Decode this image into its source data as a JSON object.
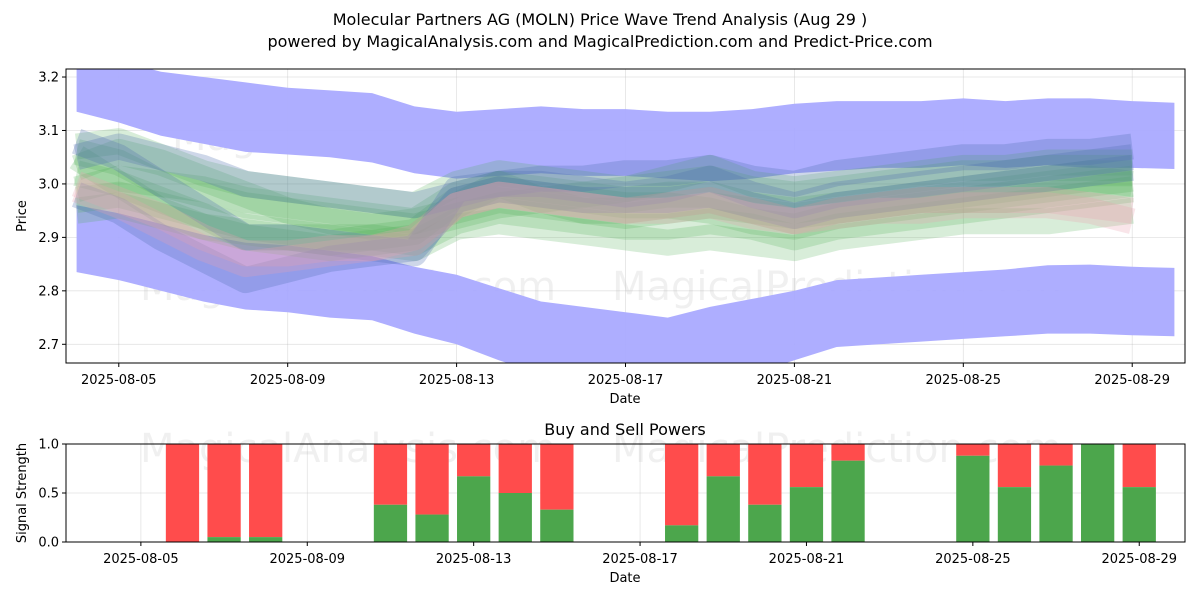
{
  "header": {
    "title": "Molecular Partners AG (MOLN) Price Wave Trend Analysis (Aug 29 )",
    "subtitle": "powered by MagicalAnalysis.com and MagicalPrediction.com and Predict-Price.com"
  },
  "watermarks": [
    "MagicalAnalysis.com",
    "MagicalPrediction.com"
  ],
  "colors": {
    "band_blue": "#aaaaff",
    "wave_green": "#4caf50",
    "wave_blue": "#4f6fb0",
    "wave_pink": "#e8a0b0",
    "buy": "#4ca64c",
    "sell": "#ff4c4c"
  },
  "chart_data": [
    {
      "type": "area",
      "title": "",
      "xlabel": "Date",
      "ylabel": "Price",
      "x_ticks": [
        "2025-08-05",
        "2025-08-09",
        "2025-08-13",
        "2025-08-17",
        "2025-08-21",
        "2025-08-25",
        "2025-08-29"
      ],
      "y_ticks": [
        "2.7",
        "2.8",
        "2.9",
        "3.0",
        "3.1",
        "3.2"
      ],
      "xlim": [
        "2025-08-03 18:00",
        "2025-08-30 06:00"
      ],
      "ylim": [
        2.665,
        3.215
      ],
      "grid": true,
      "bands": [
        {
          "name": "upper",
          "x": [
            "2025-08-04",
            "2025-08-05",
            "2025-08-06",
            "2025-08-07",
            "2025-08-08",
            "2025-08-09",
            "2025-08-10",
            "2025-08-11",
            "2025-08-12",
            "2025-08-13",
            "2025-08-14",
            "2025-08-15",
            "2025-08-16",
            "2025-08-17",
            "2025-08-18",
            "2025-08-19",
            "2025-08-20",
            "2025-08-21",
            "2025-08-22",
            "2025-08-23",
            "2025-08-24",
            "2025-08-25",
            "2025-08-26",
            "2025-08-27",
            "2025-08-28",
            "2025-08-29",
            "2025-08-30"
          ],
          "upper": [
            3.25,
            3.23,
            3.21,
            3.2,
            3.19,
            3.18,
            3.175,
            3.17,
            3.145,
            3.135,
            3.14,
            3.145,
            3.14,
            3.14,
            3.135,
            3.135,
            3.14,
            3.15,
            3.155,
            3.155,
            3.155,
            3.16,
            3.155,
            3.16,
            3.16,
            3.155,
            3.152
          ],
          "lower": [
            3.135,
            3.115,
            3.09,
            3.075,
            3.06,
            3.055,
            3.05,
            3.04,
            3.02,
            3.01,
            3.015,
            3.02,
            3.015,
            3.015,
            3.01,
            3.005,
            3.01,
            3.02,
            3.025,
            3.03,
            3.03,
            3.035,
            3.03,
            3.035,
            3.03,
            3.03,
            3.028
          ]
        },
        {
          "name": "lower",
          "x": [
            "2025-08-04",
            "2025-08-05",
            "2025-08-06",
            "2025-08-07",
            "2025-08-08",
            "2025-08-09",
            "2025-08-10",
            "2025-08-11",
            "2025-08-12",
            "2025-08-13",
            "2025-08-14",
            "2025-08-15",
            "2025-08-16",
            "2025-08-17",
            "2025-08-18",
            "2025-08-19",
            "2025-08-20",
            "2025-08-21",
            "2025-08-22",
            "2025-08-23",
            "2025-08-24",
            "2025-08-25",
            "2025-08-26",
            "2025-08-27",
            "2025-08-28",
            "2025-08-29",
            "2025-08-30"
          ],
          "upper": [
            2.96,
            2.945,
            2.925,
            2.905,
            2.89,
            2.885,
            2.875,
            2.865,
            2.845,
            2.83,
            2.805,
            2.78,
            2.77,
            2.76,
            2.75,
            2.77,
            2.785,
            2.8,
            2.82,
            2.825,
            2.83,
            2.835,
            2.84,
            2.848,
            2.849,
            2.845,
            2.843
          ],
          "lower": [
            2.835,
            2.82,
            2.8,
            2.78,
            2.765,
            2.76,
            2.75,
            2.745,
            2.72,
            2.7,
            2.67,
            2.645,
            2.635,
            2.62,
            2.61,
            2.625,
            2.645,
            2.67,
            2.695,
            2.7,
            2.705,
            2.71,
            2.715,
            2.72,
            2.72,
            2.717,
            2.715
          ]
        }
      ],
      "wave_x": [
        "2025-08-04",
        "2025-08-05",
        "2025-08-06",
        "2025-08-07",
        "2025-08-08",
        "2025-08-09",
        "2025-08-10",
        "2025-08-11",
        "2025-08-12",
        "2025-08-13",
        "2025-08-14",
        "2025-08-15",
        "2025-08-16",
        "2025-08-17",
        "2025-08-18",
        "2025-08-19",
        "2025-08-20",
        "2025-08-21",
        "2025-08-22",
        "2025-08-23",
        "2025-08-24",
        "2025-08-25",
        "2025-08-26",
        "2025-08-27",
        "2025-08-28",
        "2025-08-29"
      ],
      "waves": [
        {
          "color": "green",
          "values": [
            3.06,
            3.04,
            3.0,
            2.99,
            2.97,
            2.96,
            2.95,
            2.94,
            2.93,
            2.98,
            3.0,
            2.99,
            2.98,
            2.97,
            2.98,
            2.98,
            2.96,
            2.95,
            2.96,
            2.97,
            2.98,
            2.99,
            3.0,
            3.01,
            3.02,
            3.02
          ]
        },
        {
          "color": "green",
          "values": [
            3.05,
            3.0,
            2.95,
            2.92,
            2.9,
            2.9,
            2.89,
            2.9,
            2.91,
            2.97,
            2.99,
            2.98,
            2.97,
            2.96,
            2.96,
            2.95,
            2.93,
            2.92,
            2.94,
            2.95,
            2.96,
            2.97,
            2.97,
            2.98,
            2.99,
            3.0
          ]
        },
        {
          "color": "green",
          "values": [
            3.03,
            3.06,
            3.04,
            3.01,
            2.98,
            2.95,
            2.93,
            2.92,
            2.93,
            2.95,
            2.97,
            2.96,
            2.95,
            2.94,
            2.95,
            2.96,
            2.95,
            2.93,
            2.95,
            2.96,
            2.97,
            2.98,
            2.99,
            3.0,
            3.01,
            3.0
          ]
        },
        {
          "color": "green",
          "values": [
            3.07,
            3.08,
            3.05,
            3.02,
            3.0,
            2.99,
            2.98,
            2.97,
            2.96,
            3.0,
            3.02,
            3.01,
            3.0,
            2.99,
            3.0,
            3.01,
            2.99,
            2.98,
            2.99,
            3.0,
            3.01,
            3.02,
            3.02,
            3.03,
            3.03,
            3.03
          ]
        },
        {
          "color": "green",
          "values": [
            2.97,
            2.98,
            2.96,
            2.94,
            2.92,
            2.91,
            2.9,
            2.9,
            2.89,
            2.93,
            2.95,
            2.94,
            2.93,
            2.92,
            2.92,
            2.93,
            2.92,
            2.9,
            2.92,
            2.93,
            2.94,
            2.95,
            2.96,
            2.97,
            2.98,
            2.99
          ]
        },
        {
          "color": "green",
          "values": [
            3.02,
            3.0,
            2.97,
            2.94,
            2.9,
            2.89,
            2.88,
            2.89,
            2.9,
            2.96,
            3.0,
            2.97,
            2.95,
            2.95,
            2.96,
            2.97,
            2.95,
            2.94,
            2.95,
            2.96,
            2.97,
            2.97,
            2.98,
            2.99,
            3.0,
            3.01
          ]
        },
        {
          "color": "green",
          "values": [
            2.99,
            3.01,
            3.0,
            2.98,
            2.96,
            2.95,
            2.94,
            2.93,
            2.92,
            2.94,
            2.96,
            2.97,
            2.98,
            2.99,
            3.01,
            3.03,
            3.0,
            2.99,
            3.0,
            3.01,
            3.02,
            3.03,
            3.03,
            3.04,
            3.04,
            3.04
          ]
        },
        {
          "color": "green",
          "values": [
            2.95,
            2.96,
            2.94,
            2.92,
            2.91,
            2.9,
            2.9,
            2.89,
            2.88,
            2.92,
            2.93,
            2.92,
            2.91,
            2.9,
            2.89,
            2.9,
            2.89,
            2.88,
            2.9,
            2.91,
            2.92,
            2.93,
            2.93,
            2.93,
            2.94,
            2.95
          ]
        },
        {
          "color": "blue",
          "values": [
            3.08,
            3.05,
            3.0,
            2.95,
            2.9,
            2.9,
            2.89,
            2.88,
            2.87,
            2.99,
            3.0,
            3.0,
            2.99,
            2.98,
            2.99,
            3.01,
            2.98,
            2.96,
            2.98,
            2.99,
            3.0,
            3.01,
            3.02,
            3.03,
            3.04,
            3.05
          ]
        },
        {
          "color": "blue",
          "values": [
            3.05,
            3.07,
            3.05,
            3.03,
            3.0,
            2.99,
            2.98,
            2.97,
            2.96,
            2.98,
            3.0,
            3.01,
            3.01,
            3.02,
            3.02,
            3.03,
            3.01,
            3.0,
            3.02,
            3.03,
            3.04,
            3.05,
            3.05,
            3.06,
            3.06,
            3.07
          ]
        },
        {
          "color": "blue",
          "values": [
            2.98,
            2.95,
            2.9,
            2.86,
            2.82,
            2.84,
            2.86,
            2.87,
            2.88,
            2.97,
            2.99,
            2.98,
            2.97,
            2.97,
            2.97,
            2.98,
            2.96,
            2.94,
            2.96,
            2.97,
            2.98,
            2.99,
            3.0,
            3.01,
            3.02,
            3.03
          ]
        },
        {
          "color": "pink",
          "values": [
            2.99,
            2.96,
            2.92,
            2.88,
            2.85,
            2.86,
            2.87,
            2.88,
            2.89,
            2.96,
            2.98,
            2.97,
            2.96,
            2.95,
            2.95,
            2.96,
            2.94,
            2.93,
            2.94,
            2.95,
            2.95,
            2.96,
            2.96,
            2.96,
            2.95,
            2.93
          ]
        },
        {
          "color": "pink",
          "values": [
            3.0,
            2.97,
            2.94,
            2.9,
            2.87,
            2.87,
            2.88,
            2.88,
            2.9,
            2.96,
            2.98,
            2.97,
            2.96,
            2.95,
            2.96,
            2.97,
            2.95,
            2.93,
            2.95,
            2.96,
            2.97,
            2.97,
            2.97,
            2.97,
            2.96,
            2.95
          ]
        }
      ]
    },
    {
      "type": "bar",
      "title": "Buy and Sell Powers",
      "xlabel": "Date",
      "ylabel": "Signal Strength",
      "x_ticks": [
        "2025-08-05",
        "2025-08-09",
        "2025-08-13",
        "2025-08-17",
        "2025-08-21",
        "2025-08-25",
        "2025-08-29"
      ],
      "y_ticks": [
        "0.0",
        "0.5",
        "1.0"
      ],
      "ylim": [
        0,
        1
      ],
      "series": [
        {
          "name": "Buy",
          "color": "green"
        },
        {
          "name": "Sell",
          "color": "red"
        }
      ],
      "dates": [
        "2025-08-06",
        "2025-08-07",
        "2025-08-08",
        "2025-08-11",
        "2025-08-12",
        "2025-08-13",
        "2025-08-14",
        "2025-08-15",
        "2025-08-18",
        "2025-08-19",
        "2025-08-20",
        "2025-08-21",
        "2025-08-22",
        "2025-08-25",
        "2025-08-26",
        "2025-08-27",
        "2025-08-28",
        "2025-08-29"
      ],
      "buy": [
        0.0,
        0.05,
        0.05,
        0.38,
        0.28,
        0.67,
        0.5,
        0.33,
        0.17,
        0.67,
        0.38,
        0.56,
        0.83,
        0.88,
        0.56,
        0.78,
        1.0,
        0.56
      ]
    }
  ]
}
